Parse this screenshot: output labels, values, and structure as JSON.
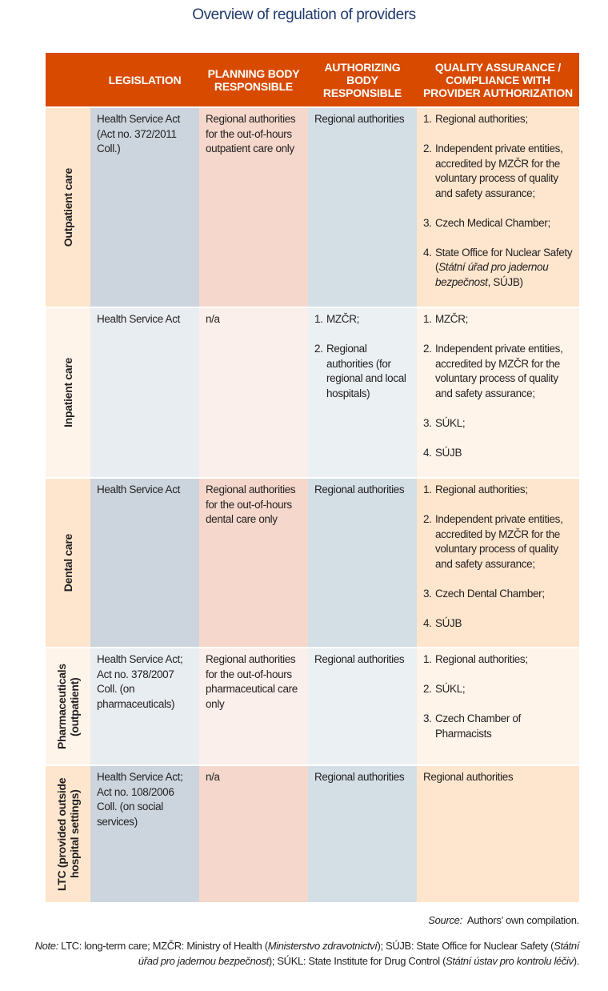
{
  "title": "Overview of regulation of providers",
  "header": [
    "",
    "LEGISLATION",
    "PLANNING BODY RESPONSIBLE",
    "AUTHORIZING BODY RESPONSIBLE",
    "QUALITY ASSURANCE / COMPLIANCE WITH PROVIDER AUTHORIZATION"
  ],
  "colors": {
    "header": "#d84a00",
    "title": "#1f3a6e"
  },
  "rows": [
    {
      "label": "Outpatient care",
      "legislation": [
        [
          {
            "t": "Health Service Act (Act no. 372/2011 Coll.)"
          }
        ]
      ],
      "planning": [
        [
          {
            "t": "Regional authorities for the out-of-hours outpatient care only"
          }
        ]
      ],
      "authorizing": [
        [
          {
            "t": "Regional authorities"
          }
        ]
      ],
      "quality": [
        {
          "num": "1.",
          "seg": [
            {
              "t": "Regional authorities;"
            }
          ]
        },
        {
          "num": "2.",
          "seg": [
            {
              "t": "Independent private entities, accredited by MZČR for the voluntary process of quality and safety assurance;"
            }
          ]
        },
        {
          "num": "3.",
          "seg": [
            {
              "t": "Czech Medical Chamber;"
            }
          ]
        },
        {
          "num": "4.",
          "seg": [
            {
              "t": "State Office for Nuclear Safety ("
            },
            {
              "t": "Státní úřad pro jadernou bezpečnost",
              "i": true
            },
            {
              "t": ", SÚJB)"
            }
          ]
        }
      ]
    },
    {
      "label": "Inpatient care",
      "legislation": [
        [
          {
            "t": "Health Service Act"
          }
        ]
      ],
      "planning": [
        [
          {
            "t": "n/a"
          }
        ]
      ],
      "authorizing": [
        {
          "num": "1.",
          "seg": [
            {
              "t": "MZČR;"
            }
          ]
        },
        {
          "num": "2.",
          "seg": [
            {
              "t": "Regional authorities (for regional and local hospitals)"
            }
          ]
        }
      ],
      "quality": [
        {
          "num": "1.",
          "seg": [
            {
              "t": "MZČR;"
            }
          ]
        },
        {
          "num": "2.",
          "seg": [
            {
              "t": "Independent private entities, accredited by MZČR for the voluntary process of quality and safety assurance;"
            }
          ]
        },
        {
          "num": "3.",
          "seg": [
            {
              "t": "SÚKL;"
            }
          ]
        },
        {
          "num": "4.",
          "seg": [
            {
              "t": "SÚJB"
            }
          ]
        }
      ]
    },
    {
      "label": "Dental care",
      "legislation": [
        [
          {
            "t": "Health Service Act"
          }
        ]
      ],
      "planning": [
        [
          {
            "t": "Regional authorities for the out-of-hours dental care only"
          }
        ]
      ],
      "authorizing": [
        [
          {
            "t": "Regional authorities"
          }
        ]
      ],
      "quality": [
        {
          "num": "1.",
          "seg": [
            {
              "t": "Regional authorities;"
            }
          ]
        },
        {
          "num": "2.",
          "seg": [
            {
              "t": "Independent private entities, accredited by MZČR for the voluntary process of quality and safety assurance;"
            }
          ]
        },
        {
          "num": "3.",
          "seg": [
            {
              "t": "Czech Dental Chamber;"
            }
          ]
        },
        {
          "num": "4.",
          "seg": [
            {
              "t": "SÚJB"
            }
          ]
        }
      ]
    },
    {
      "label": "Pharmaceuticals (outpatient)",
      "legislation": [
        [
          {
            "t": "Health Service Act; Act no. 378/2007 Coll. (on pharmaceuticals)"
          }
        ]
      ],
      "planning": [
        [
          {
            "t": "Regional authorities for the out-of-hours pharmaceutical care only"
          }
        ]
      ],
      "authorizing": [
        [
          {
            "t": "Regional authorities"
          }
        ]
      ],
      "quality": [
        {
          "num": "1.",
          "seg": [
            {
              "t": "Regional authorities;"
            }
          ]
        },
        {
          "num": "2.",
          "seg": [
            {
              "t": "SÚKL;"
            }
          ]
        },
        {
          "num": "3.",
          "seg": [
            {
              "t": "Czech Chamber of Pharmacists"
            }
          ]
        }
      ]
    },
    {
      "label": "LTC (provided outside hospital settings)",
      "legislation": [
        [
          {
            "t": "Health Service Act; Act no. 108/2006 Coll. (on social services)"
          }
        ]
      ],
      "planning": [
        [
          {
            "t": "n/a"
          }
        ]
      ],
      "authorizing": [
        [
          {
            "t": "Regional authorities"
          }
        ]
      ],
      "quality": [
        [
          {
            "t": "Regional authorities"
          }
        ]
      ]
    }
  ],
  "source": {
    "label": "Source:",
    "text": "Authors’ own compilation."
  },
  "note": [
    {
      "t": "Note:",
      "i": true
    },
    {
      "t": "  LTC: long-term care; MZČR: Ministry of Health ("
    },
    {
      "t": "Ministerstvo zdravotnictví",
      "i": true
    },
    {
      "t": "); SÚJB: State Office for Nuclear Safety ("
    },
    {
      "t": "Státní úřad pro jadernou bezpečnost",
      "i": true
    },
    {
      "t": "); SÚKL: State Institute for Drug Control ("
    },
    {
      "t": "Státní ústav pro kontrolu léčiv",
      "i": true
    },
    {
      "t": ")."
    }
  ]
}
